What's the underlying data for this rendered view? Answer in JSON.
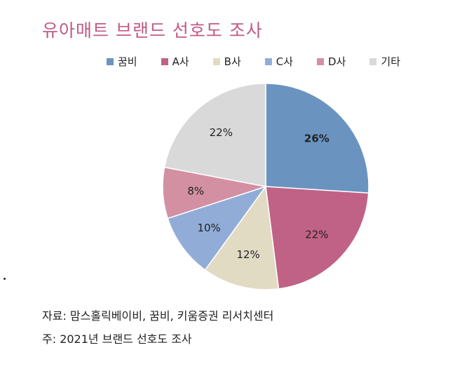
{
  "header": {
    "title": "유아매트 브랜드 선호도 조사"
  },
  "chart_data": {
    "type": "pie",
    "categories": [
      "꿈비",
      "A사",
      "B사",
      "C사",
      "D사",
      "기타"
    ],
    "values": [
      26,
      22,
      12,
      10,
      8,
      22
    ],
    "labels": [
      "26%",
      "22%",
      "12%",
      "10%",
      "8%",
      "22%"
    ],
    "colors": [
      "#6a93c0",
      "#c06285",
      "#e1dbc4",
      "#91add7",
      "#d490a3",
      "#d9d9d9"
    ],
    "legend_position": "top"
  },
  "footer": {
    "source": "자료: 맘스홀릭베이비, 꿈비, 키움증권 리서치센터",
    "note": "주: 2021년 브랜드 선호도 조사"
  },
  "title_color": "#c05a86"
}
